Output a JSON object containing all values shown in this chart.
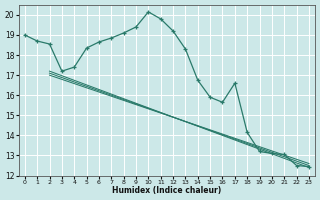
{
  "xlabel": "Humidex (Indice chaleur)",
  "xlim": [
    -0.5,
    23.5
  ],
  "ylim": [
    12,
    20.5
  ],
  "yticks": [
    12,
    13,
    14,
    15,
    16,
    17,
    18,
    19,
    20
  ],
  "xticks": [
    0,
    1,
    2,
    3,
    4,
    5,
    6,
    7,
    8,
    9,
    10,
    11,
    12,
    13,
    14,
    15,
    16,
    17,
    18,
    19,
    20,
    21,
    22,
    23
  ],
  "bg_color": "#cce8e8",
  "line_color": "#2a7a6a",
  "grid_color": "#ffffff",
  "line1_x": [
    0,
    1,
    2,
    3,
    4,
    5,
    6,
    7,
    8,
    9,
    10,
    11,
    12,
    13,
    14,
    15,
    16,
    17,
    18,
    19,
    20,
    21,
    22,
    23
  ],
  "line1_y": [
    19.0,
    18.7,
    18.55,
    17.2,
    17.4,
    18.35,
    18.65,
    18.85,
    19.1,
    19.4,
    20.15,
    19.8,
    19.2,
    18.3,
    16.75,
    15.9,
    15.65,
    16.6,
    14.15,
    13.2,
    13.1,
    13.05,
    12.5,
    12.45
  ],
  "line2_x": [
    2,
    23
  ],
  "line2_y": [
    17.2,
    12.4
  ],
  "line3_x": [
    2,
    23
  ],
  "line3_y": [
    17.1,
    12.5
  ],
  "line4_x": [
    2,
    23
  ],
  "line4_y": [
    17.0,
    12.6
  ]
}
